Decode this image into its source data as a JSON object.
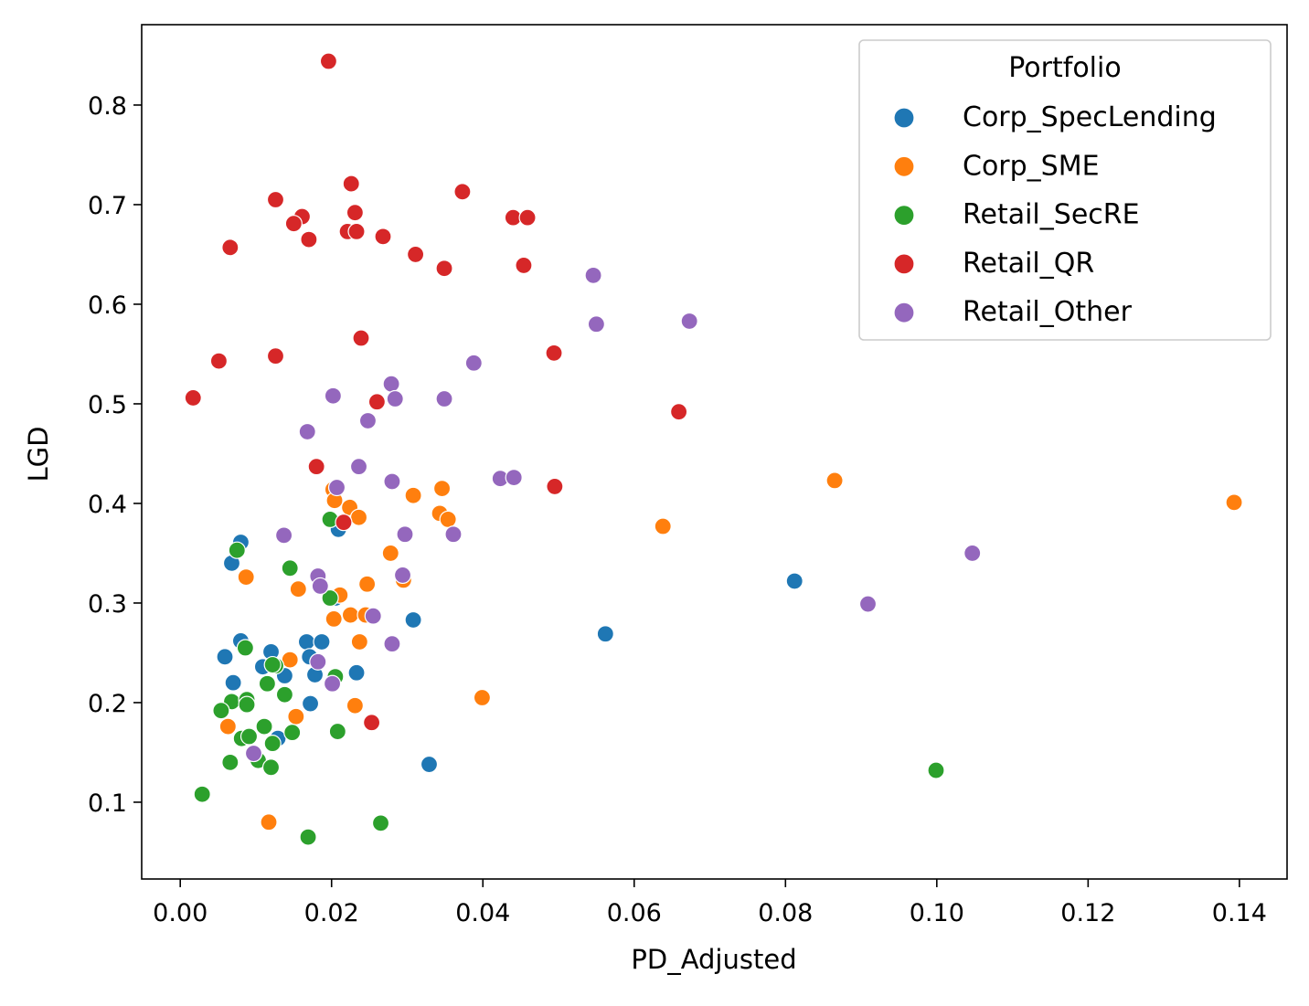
{
  "chart_data": {
    "type": "scatter",
    "xlabel": "PD_Adjusted",
    "ylabel": "LGD",
    "xlim": [
      -0.0051,
      0.1463
    ],
    "ylim": [
      0.0229,
      0.8807
    ],
    "xticks": [
      "0.00",
      "0.02",
      "0.04",
      "0.06",
      "0.08",
      "0.10",
      "0.12",
      "0.14"
    ],
    "yticks": [
      "0.1",
      "0.2",
      "0.3",
      "0.4",
      "0.5",
      "0.6",
      "0.7",
      "0.8"
    ],
    "grid": false,
    "legend": {
      "title": "Portfolio",
      "placement": "top-right"
    },
    "series": [
      {
        "name": "Corp_SpecLending",
        "color": "#1f77b4",
        "points": [
          [
            0.0812,
            0.322
          ],
          [
            0.0562,
            0.269
          ],
          [
            0.008,
            0.361
          ],
          [
            0.0068,
            0.34
          ],
          [
            0.0209,
            0.374
          ],
          [
            0.0205,
            0.305
          ],
          [
            0.0308,
            0.283
          ],
          [
            0.0167,
            0.261
          ],
          [
            0.0187,
            0.261
          ],
          [
            0.008,
            0.262
          ],
          [
            0.0059,
            0.246
          ],
          [
            0.012,
            0.251
          ],
          [
            0.0171,
            0.246
          ],
          [
            0.0109,
            0.236
          ],
          [
            0.0138,
            0.227
          ],
          [
            0.0178,
            0.228
          ],
          [
            0.0233,
            0.23
          ],
          [
            0.007,
            0.22
          ],
          [
            0.0172,
            0.199
          ],
          [
            0.0129,
            0.164
          ],
          [
            0.0329,
            0.138
          ]
        ]
      },
      {
        "name": "Corp_SME",
        "color": "#ff7f0e",
        "points": [
          [
            0.0865,
            0.423
          ],
          [
            0.1393,
            0.401
          ],
          [
            0.0202,
            0.414
          ],
          [
            0.0204,
            0.403
          ],
          [
            0.0308,
            0.408
          ],
          [
            0.0346,
            0.415
          ],
          [
            0.0224,
            0.396
          ],
          [
            0.0236,
            0.386
          ],
          [
            0.0343,
            0.39
          ],
          [
            0.0354,
            0.384
          ],
          [
            0.0638,
            0.377
          ],
          [
            0.0278,
            0.35
          ],
          [
            0.0087,
            0.326
          ],
          [
            0.0156,
            0.314
          ],
          [
            0.0247,
            0.319
          ],
          [
            0.0211,
            0.308
          ],
          [
            0.0203,
            0.284
          ],
          [
            0.0225,
            0.288
          ],
          [
            0.0245,
            0.288
          ],
          [
            0.0237,
            0.261
          ],
          [
            0.0295,
            0.323
          ],
          [
            0.0145,
            0.243
          ],
          [
            0.0399,
            0.205
          ],
          [
            0.0231,
            0.197
          ],
          [
            0.0153,
            0.186
          ],
          [
            0.0063,
            0.176
          ],
          [
            0.0117,
            0.08
          ]
        ]
      },
      {
        "name": "Retail_SecRE",
        "color": "#2ca02c",
        "points": [
          [
            0.0999,
            0.132
          ],
          [
            0.0198,
            0.384
          ],
          [
            0.0075,
            0.353
          ],
          [
            0.0145,
            0.335
          ],
          [
            0.0198,
            0.305
          ],
          [
            0.0086,
            0.255
          ],
          [
            0.0126,
            0.237
          ],
          [
            0.0122,
            0.238
          ],
          [
            0.0115,
            0.219
          ],
          [
            0.0205,
            0.226
          ],
          [
            0.0138,
            0.208
          ],
          [
            0.0068,
            0.201
          ],
          [
            0.0088,
            0.203
          ],
          [
            0.0054,
            0.192
          ],
          [
            0.0088,
            0.198
          ],
          [
            0.0111,
            0.176
          ],
          [
            0.0208,
            0.171
          ],
          [
            0.0148,
            0.17
          ],
          [
            0.0081,
            0.164
          ],
          [
            0.0091,
            0.166
          ],
          [
            0.0122,
            0.159
          ],
          [
            0.0066,
            0.14
          ],
          [
            0.0103,
            0.142
          ],
          [
            0.012,
            0.135
          ],
          [
            0.0029,
            0.108
          ],
          [
            0.0169,
            0.065
          ],
          [
            0.0265,
            0.079
          ]
        ]
      },
      {
        "name": "Retail_QR",
        "color": "#d62728",
        "points": [
          [
            0.0196,
            0.844
          ],
          [
            0.0226,
            0.721
          ],
          [
            0.0373,
            0.713
          ],
          [
            0.0126,
            0.705
          ],
          [
            0.0161,
            0.688
          ],
          [
            0.015,
            0.681
          ],
          [
            0.017,
            0.665
          ],
          [
            0.0231,
            0.692
          ],
          [
            0.0221,
            0.673
          ],
          [
            0.0233,
            0.673
          ],
          [
            0.0268,
            0.668
          ],
          [
            0.044,
            0.687
          ],
          [
            0.0459,
            0.687
          ],
          [
            0.0066,
            0.657
          ],
          [
            0.0311,
            0.65
          ],
          [
            0.0349,
            0.636
          ],
          [
            0.0454,
            0.639
          ],
          [
            0.0239,
            0.566
          ],
          [
            0.0051,
            0.543
          ],
          [
            0.0126,
            0.548
          ],
          [
            0.0494,
            0.551
          ],
          [
            0.0017,
            0.506
          ],
          [
            0.026,
            0.502
          ],
          [
            0.0659,
            0.492
          ],
          [
            0.018,
            0.437
          ],
          [
            0.0495,
            0.417
          ],
          [
            0.0216,
            0.381
          ],
          [
            0.0253,
            0.18
          ]
        ]
      },
      {
        "name": "Retail_Other",
        "color": "#9467bd",
        "points": [
          [
            0.0546,
            0.629
          ],
          [
            0.055,
            0.58
          ],
          [
            0.0673,
            0.583
          ],
          [
            0.0388,
            0.541
          ],
          [
            0.0279,
            0.52
          ],
          [
            0.0202,
            0.508
          ],
          [
            0.0284,
            0.505
          ],
          [
            0.0349,
            0.505
          ],
          [
            0.0248,
            0.483
          ],
          [
            0.0168,
            0.472
          ],
          [
            0.0236,
            0.437
          ],
          [
            0.0423,
            0.425
          ],
          [
            0.0441,
            0.426
          ],
          [
            0.028,
            0.422
          ],
          [
            0.0207,
            0.416
          ],
          [
            0.0137,
            0.368
          ],
          [
            0.0297,
            0.369
          ],
          [
            0.0361,
            0.369
          ],
          [
            0.1047,
            0.35
          ],
          [
            0.0182,
            0.327
          ],
          [
            0.0294,
            0.328
          ],
          [
            0.0185,
            0.317
          ],
          [
            0.0255,
            0.287
          ],
          [
            0.0909,
            0.299
          ],
          [
            0.028,
            0.259
          ],
          [
            0.0201,
            0.219
          ],
          [
            0.0097,
            0.149
          ],
          [
            0.0182,
            0.241
          ]
        ]
      }
    ]
  }
}
